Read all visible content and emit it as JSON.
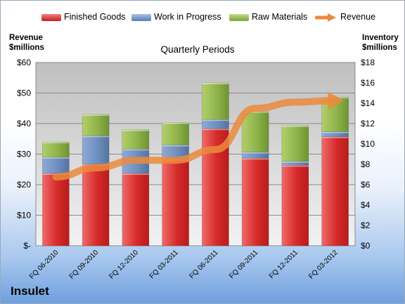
{
  "company": "Insulet",
  "chart_data": {
    "type": "bar",
    "stacked": true,
    "title": "Quarterly Periods",
    "categories": [
      "FQ 06-2010",
      "FQ 09-2010",
      "FQ 12-2010",
      "FQ 03-2011",
      "FQ 06-2011",
      "FQ 09-2011",
      "FQ 12-2011",
      "FQ 03-2012"
    ],
    "series": [
      {
        "name": "Finished Goods",
        "axis": "right",
        "color": "#d62a2a",
        "values": [
          7.1,
          8.0,
          7.1,
          8.5,
          11.5,
          8.6,
          7.9,
          10.7
        ]
      },
      {
        "name": "Work in Progress",
        "axis": "right",
        "color": "#6f8fbf",
        "values": [
          1.6,
          2.8,
          2.4,
          1.4,
          0.9,
          0.6,
          0.4,
          0.5
        ]
      },
      {
        "name": "Raw Materials",
        "axis": "right",
        "color": "#8fb44a",
        "values": [
          1.5,
          2.1,
          1.9,
          2.2,
          3.6,
          4.0,
          3.5,
          3.4
        ]
      },
      {
        "name": "Revenue",
        "axis": "left",
        "type": "line",
        "color": "#ec8a3c",
        "values": [
          22.5,
          25.5,
          28.0,
          28.0,
          31.5,
          45.0,
          47.0,
          47.5
        ]
      }
    ],
    "left_axis": {
      "label": "Revenue\n$millions",
      "min": 0,
      "max": 60,
      "ticks": [
        "$-",
        "$10",
        "$20",
        "$30",
        "$40",
        "$50",
        "$60"
      ]
    },
    "right_axis": {
      "label": "Inventory\n$millions",
      "min": 0,
      "max": 18,
      "ticks": [
        "$0",
        "$2",
        "$4",
        "$6",
        "$8",
        "$10",
        "$12",
        "$14",
        "$16",
        "$18"
      ]
    },
    "grid": true,
    "legend_position": "top"
  }
}
